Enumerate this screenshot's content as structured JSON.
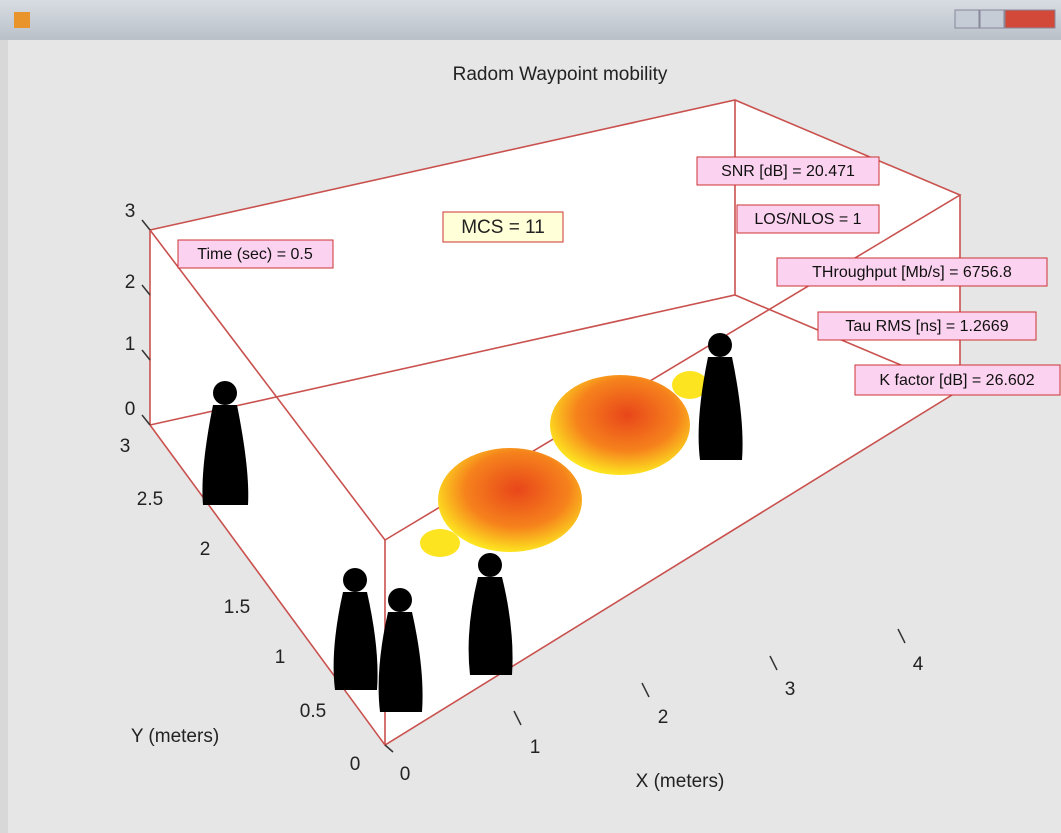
{
  "window": {
    "title": "Radom Waypoint mobility"
  },
  "axes": {
    "z_ticks": [
      "0",
      "1",
      "2",
      "3"
    ],
    "y_ticks": [
      "0",
      "0.5",
      "1",
      "1.5",
      "2",
      "2.5",
      "3"
    ],
    "x_ticks": [
      "0",
      "1",
      "2",
      "3",
      "4"
    ],
    "x_label": "X (meters)",
    "y_label": "Y (meters)"
  },
  "annotations": {
    "time": "Time (sec) = 0.5",
    "mcs": "MCS = 11",
    "snr": "SNR [dB] = 20.471",
    "los": "LOS/NLOS = 1",
    "throughput": "THroughput [Mb/s] = 6756.8",
    "tau": "Tau RMS [ns] = 1.2669",
    "kfactor": "K factor [dB] = 26.602"
  }
}
